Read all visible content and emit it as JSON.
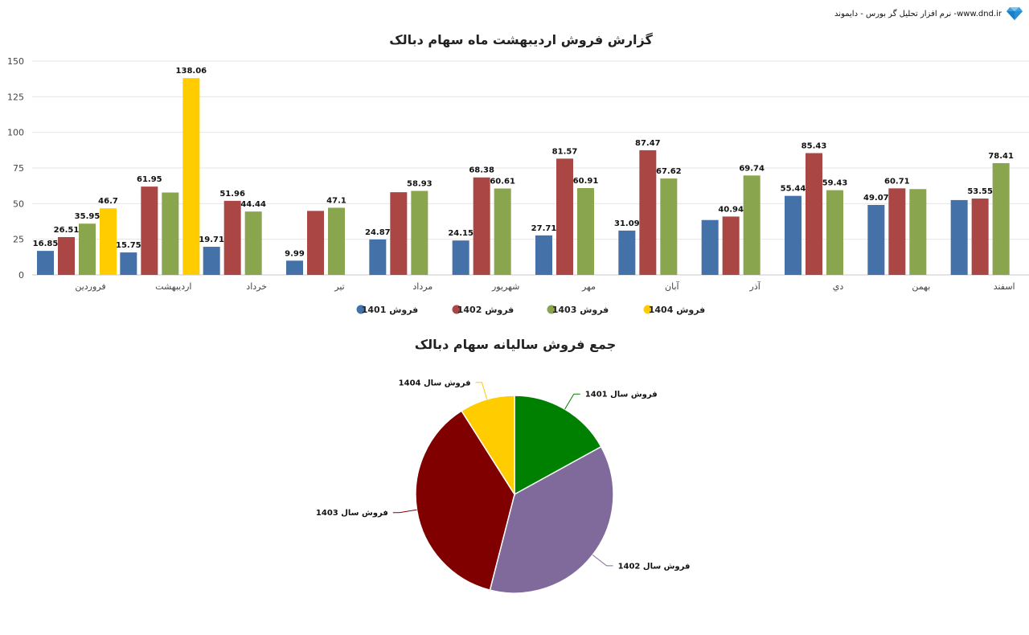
{
  "brand": {
    "text": "نرم افزار تحلیل گر بورس - دایموند -www.dnd.ir",
    "logo": "diamond-icon"
  },
  "chart_data": [
    {
      "type": "bar",
      "title": "گزارش فروش اردیبهشت ماه سهام دبالک",
      "xlabel": "",
      "ylabel": "",
      "ylim": [
        0,
        150
      ],
      "yticks": [
        0,
        25,
        50,
        75,
        100,
        125,
        150
      ],
      "grid": true,
      "legend_position": "bottom",
      "categories": [
        "فروردین",
        "اردیبهشت",
        "خرداد",
        "تیر",
        "مرداد",
        "شهریور",
        "مهر",
        "آبان",
        "آذر",
        "دي",
        "بهمن",
        "اسفند"
      ],
      "series": [
        {
          "name": "فروش 1401",
          "color": "#4471A8",
          "values": [
            16.85,
            15.75,
            19.71,
            9.99,
            24.87,
            24.15,
            27.71,
            31.09,
            38.5,
            55.44,
            49.07,
            52.5
          ],
          "labels": [
            "16.85",
            "15.75",
            "19.71",
            "9.99",
            "24.87",
            "24.15",
            "27.71",
            "31.09",
            "",
            "55.44",
            "49.07",
            ""
          ]
        },
        {
          "name": "فروش 1402",
          "color": "#AA4643",
          "values": [
            26.51,
            61.95,
            51.96,
            44.9,
            58.0,
            68.38,
            81.57,
            87.47,
            40.94,
            85.43,
            60.71,
            53.55
          ],
          "labels": [
            "26.51",
            "61.95",
            "51.96",
            "",
            "",
            "68.38",
            "81.57",
            "87.47",
            "40.94",
            "85.43",
            "60.71",
            "53.55"
          ]
        },
        {
          "name": "فروش 1403",
          "color": "#89A54E",
          "values": [
            35.95,
            57.8,
            44.44,
            47.1,
            58.93,
            60.61,
            60.91,
            67.62,
            69.74,
            59.43,
            60.2,
            78.41
          ],
          "labels": [
            "35.95",
            "",
            "44.44",
            "47.1",
            "58.93",
            "60.61",
            "60.91",
            "67.62",
            "69.74",
            "59.43",
            "",
            "78.41"
          ]
        },
        {
          "name": "فروش 1404",
          "color": "#FFCC00",
          "values": [
            46.7,
            138.06,
            null,
            null,
            null,
            null,
            null,
            null,
            null,
            null,
            null,
            null
          ],
          "labels": [
            "46.7",
            "138.06",
            "",
            "",
            "",
            "",
            "",
            "",
            "",
            "",
            "",
            ""
          ]
        }
      ]
    },
    {
      "type": "pie",
      "title": "جمع فروش سالیانه سهام دبالک",
      "slices": [
        {
          "name": "فروش سال 1401",
          "value": 17,
          "color": "#008000"
        },
        {
          "name": "فروش سال 1402",
          "value": 37,
          "color": "#80699B"
        },
        {
          "name": "فروش سال 1403",
          "value": 37,
          "color": "#800000"
        },
        {
          "name": "فروش سال 1404",
          "value": 9,
          "color": "#FFCC00"
        }
      ]
    }
  ]
}
